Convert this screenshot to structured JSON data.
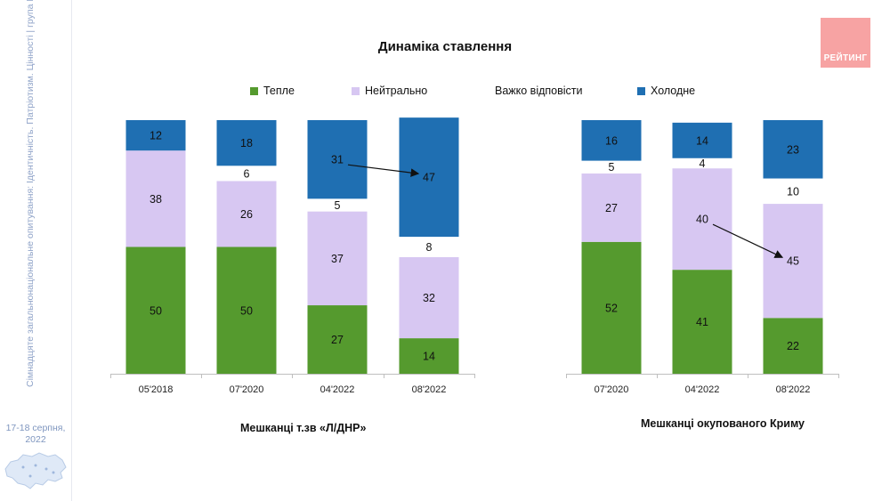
{
  "sidebar": {
    "caption": "Сімнадцяте загальнонаціональне опитування: Ідентичність. Патріотизм. Цінності | група РЕЙТИНГ",
    "date": "17-18 серпня, 2022"
  },
  "logo": {
    "text": "РЕЙТИНГ",
    "color": "#f7a3a3"
  },
  "chart_data": {
    "type": "bar",
    "stacked": true,
    "title": "Динаміка ставлення",
    "legend_position": "top",
    "ylim": [
      0,
      100
    ],
    "groups": [
      {
        "name": "Мешканці т.зв «Л/ДНР»",
        "categories": [
          "05'2018",
          "07'2020",
          "04'2022",
          "08'2022"
        ]
      },
      {
        "name": "Мешканці окупованого Криму",
        "categories": [
          "07'2020",
          "04'2022",
          "08'2022"
        ]
      }
    ],
    "categories": [
      "05'2018",
      "07'2020",
      "04'2022",
      "08'2022",
      "07'2020",
      "04'2022",
      "08'2022"
    ],
    "series": [
      {
        "name": "Тепле",
        "color": "#559a2e",
        "values": [
          50,
          50,
          27,
          14,
          52,
          41,
          22
        ]
      },
      {
        "name": "Нейтрально",
        "color": "#d7c7f2",
        "values": [
          38,
          26,
          37,
          32,
          27,
          40,
          45
        ]
      },
      {
        "name": "Важко відповісти",
        "color": "#ffffff",
        "values": [
          null,
          6,
          5,
          8,
          5,
          4,
          10
        ]
      },
      {
        "name": "Холодне",
        "color": "#1f6fb2",
        "values": [
          12,
          18,
          31,
          47,
          16,
          14,
          23
        ]
      }
    ],
    "annotations": [
      {
        "type": "arrow",
        "from": "04'2022 Холодне (Л/ДНР)",
        "to": "08'2022 Холодне (Л/ДНР)"
      },
      {
        "type": "arrow",
        "from": "04'2022 Нейтрально (Крим)",
        "to": "08'2022 Нейтрально (Крим)"
      }
    ]
  }
}
